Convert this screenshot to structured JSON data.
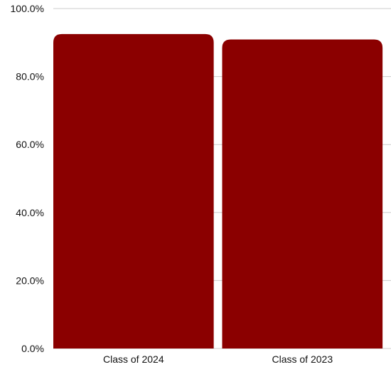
{
  "chart_data": {
    "type": "bar",
    "title": "",
    "xlabel": "",
    "ylabel": "",
    "categories": [
      "Class of 2024",
      "Class of 2023"
    ],
    "values": [
      92.5,
      90.9
    ],
    "ylim": [
      0,
      100
    ],
    "y_ticks": [
      0,
      20,
      40,
      60,
      80,
      100
    ],
    "y_tick_labels": [
      "0.0%",
      "20.0%",
      "40.0%",
      "60.0%",
      "80.0%",
      "100.0%"
    ],
    "grid": true,
    "legend": "none",
    "colors": {
      "bar": "#8b0000",
      "grid": "#cccccc",
      "text": "#111111"
    }
  }
}
